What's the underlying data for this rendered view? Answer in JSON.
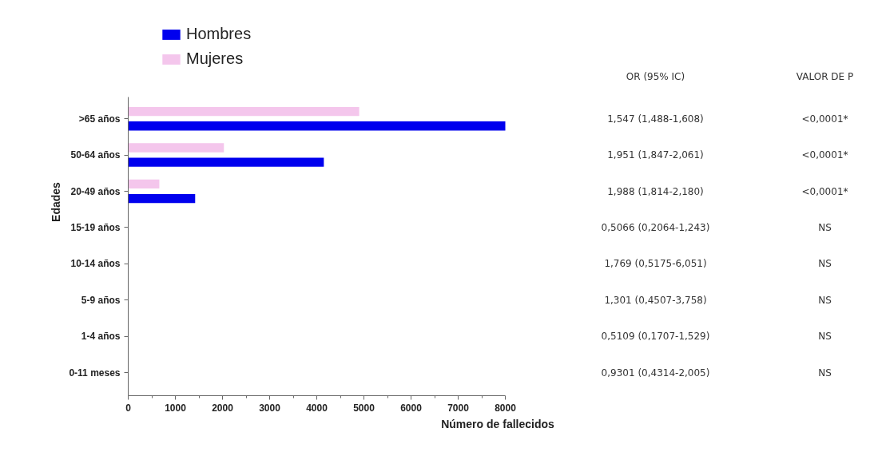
{
  "chart_data": {
    "type": "bar",
    "orientation": "horizontal",
    "xlabel": "Número de fallecidos",
    "ylabel": "Edades",
    "categories": [
      ">65 años",
      "50-64 años",
      "20-49 años",
      "15-19 años",
      "10-14 años",
      "5-9 años",
      "1-4 años",
      "0-11 meses"
    ],
    "series": [
      {
        "name": "Hombres",
        "color": "#0000ee",
        "values": [
          8000,
          4150,
          1420,
          0,
          0,
          0,
          0,
          0
        ]
      },
      {
        "name": "Mujeres",
        "color": "#f4c6ec",
        "values": [
          4900,
          2030,
          660,
          0,
          0,
          0,
          0,
          0
        ]
      }
    ],
    "xlim": [
      0,
      8000
    ],
    "xticks": [
      0,
      1000,
      2000,
      3000,
      4000,
      5000,
      6000,
      7000,
      8000
    ],
    "grid": false,
    "legend": "top left",
    "annotations": [
      "OR (95% IC)",
      "VALOR DE P",
      "1,547 (1,488-1,608)",
      "<0,0001*",
      "1,951 (1,847-2,061)",
      "<0,0001*",
      "1,988 (1,814-2,180)",
      "<0,0001*",
      "0,5066 (0,2064-1,243)",
      "NS",
      "1,769 (0,5175-6,051)",
      "NS",
      "1,301 (0,4507-3,758)",
      "NS",
      "0,5109 (0,1707-1,529)",
      "NS",
      "0,9301 (0,4314-2,005)",
      "NS"
    ]
  }
}
